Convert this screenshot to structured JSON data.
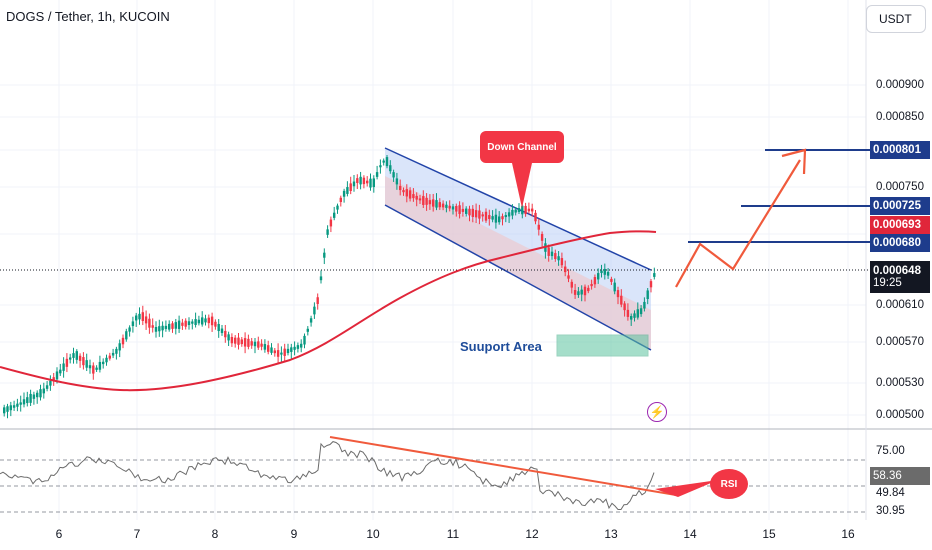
{
  "header": {
    "title": "DOGS / Tether, 1h, KUCOIN",
    "currency_button": "USDT"
  },
  "price_axis": {
    "labels": [
      "0.000900",
      "0.000850",
      "0.000750",
      "0.000610",
      "0.000570",
      "0.000530",
      "0.000500"
    ]
  },
  "price_badges": [
    {
      "label": "0.000801",
      "color": "#1e3c8c"
    },
    {
      "label": "0.000725",
      "color": "#1e3c8c"
    },
    {
      "label": "0.000693",
      "color": "#e0263a"
    },
    {
      "label": "0.000680",
      "color": "#1e3c8c"
    },
    {
      "label": "0.000648",
      "sublabel": "19:25",
      "color": "#131722"
    }
  ],
  "rsi_axis": {
    "labels": [
      "75.00",
      "49.84",
      "30.95"
    ],
    "current_badge": "58.36"
  },
  "time_axis": {
    "labels": [
      "6",
      "7",
      "8",
      "9",
      "10",
      "11",
      "12",
      "13",
      "14",
      "15",
      "16"
    ]
  },
  "annotations": {
    "down_channel": "Down Channel",
    "support_area": "Suuport Area",
    "rsi": "RSI"
  },
  "colors": {
    "candle_up": "#089981",
    "candle_down": "#f23645",
    "ma_line": "#e0263a",
    "channel_line": "#2244a8",
    "target_line": "#1e3c8c",
    "arrow": "#f05a3c",
    "rsi_line": "#6b6b6b",
    "support_fill": "#5cc4a0"
  },
  "icons": {
    "lightning": "lightning-icon"
  }
}
